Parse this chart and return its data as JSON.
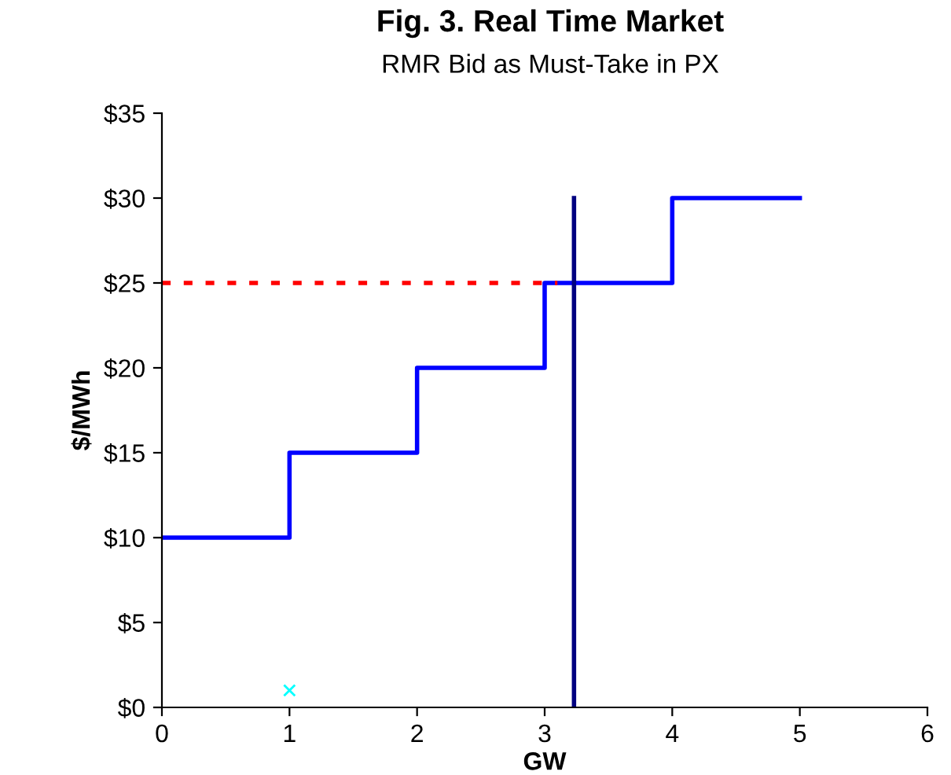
{
  "chart_data": {
    "type": "step",
    "title": "Fig. 3. Real Time Market",
    "subtitle": "RMR Bid as Must-Take in PX",
    "xlabel": "GW",
    "ylabel": "$/MWh",
    "series": [
      {
        "color": "#0000ff",
        "x": [
          0,
          1,
          2,
          3,
          4,
          5
        ],
        "values": [
          10,
          15,
          20,
          25,
          30,
          30
        ],
        "line_style": "solid",
        "marker": "none"
      },
      {
        "type": "line",
        "color": "#ff0000",
        "x": [
          0,
          3.1
        ],
        "values": [
          25,
          25
        ],
        "line_style": "dotted",
        "marker": "none"
      },
      {
        "type": "line",
        "color": "#000080",
        "x": [
          3.23,
          3.23
        ],
        "values": [
          0,
          30
        ],
        "line_style": "solid",
        "marker": "none"
      },
      {
        "type": "scatter",
        "color": "#00ffff",
        "x": [
          1
        ],
        "values": [
          1
        ],
        "marker": "cross"
      }
    ],
    "xlim": [
      0,
      6
    ],
    "xticks": [
      0,
      1,
      2,
      3,
      4,
      5,
      6
    ],
    "ylim": [
      0,
      35
    ],
    "yticks": [
      {
        "value": 0,
        "label": "$0"
      },
      {
        "value": 5,
        "label": "$5"
      },
      {
        "value": 10,
        "label": "$10"
      },
      {
        "value": 15,
        "label": "$15"
      },
      {
        "value": 20,
        "label": "$20"
      },
      {
        "value": 25,
        "label": "$25"
      },
      {
        "value": 30,
        "label": "$30"
      },
      {
        "value": 35,
        "label": "$35"
      }
    ],
    "grid": false
  }
}
